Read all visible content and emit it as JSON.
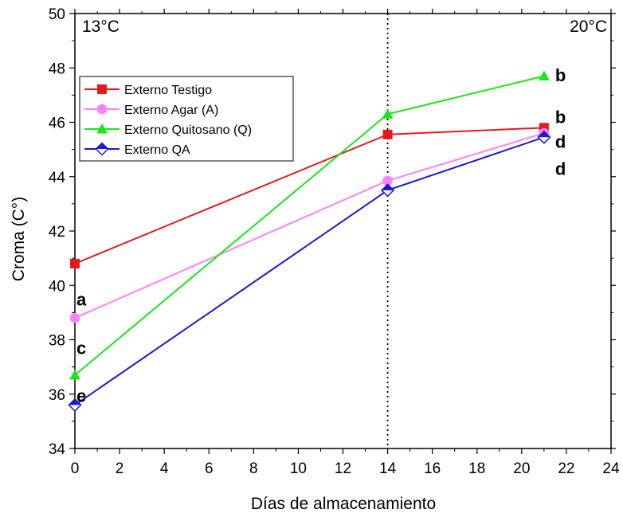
{
  "chart_data": {
    "type": "line",
    "xlabel": "Días de almacenamiento",
    "ylabel": "Croma (C°)",
    "xlim": [
      0,
      24
    ],
    "ylim": [
      34,
      50
    ],
    "xticks": [
      "0",
      "2",
      "4",
      "6",
      "8",
      "10",
      "12",
      "14",
      "16",
      "18",
      "20",
      "22",
      "24"
    ],
    "yticks": [
      "34",
      "36",
      "38",
      "40",
      "42",
      "44",
      "46",
      "48",
      "50"
    ],
    "grid": false,
    "legend_position": "upper-left",
    "temperature_labels": {
      "left": "13°C",
      "right": "20°C"
    },
    "divider_x": 14,
    "series": [
      {
        "name": "Externo Testigo",
        "color": "#e8191c",
        "marker": "square",
        "x": [
          0,
          14,
          21
        ],
        "y": [
          40.8,
          45.55,
          45.8
        ]
      },
      {
        "name": "Externo Agar (A)",
        "color": "#ff80ff",
        "marker": "circle",
        "x": [
          0,
          14,
          21
        ],
        "y": [
          38.8,
          43.85,
          45.6
        ]
      },
      {
        "name": "Externo Quitosano (Q)",
        "color": "#19e619",
        "marker": "triangle",
        "x": [
          0,
          14,
          21
        ],
        "y": [
          36.7,
          46.3,
          47.7
        ]
      },
      {
        "name": "Externo QA",
        "color": "#1a1acc",
        "marker": "diamond",
        "x": [
          0,
          14,
          21
        ],
        "y": [
          35.6,
          43.5,
          45.45
        ]
      }
    ],
    "annotations": [
      {
        "text": "a",
        "x": 0,
        "y": 39.5
      },
      {
        "text": "c",
        "x": 0,
        "y": 37.7
      },
      {
        "text": "e",
        "x": 0,
        "y": 35.95
      },
      {
        "text": "b",
        "x": 21,
        "y": 47.75
      },
      {
        "text": "b",
        "x": 21,
        "y": 46.2
      },
      {
        "text": "d",
        "x": 21,
        "y": 45.3
      },
      {
        "text": "d",
        "x": 21,
        "y": 44.3
      }
    ]
  }
}
